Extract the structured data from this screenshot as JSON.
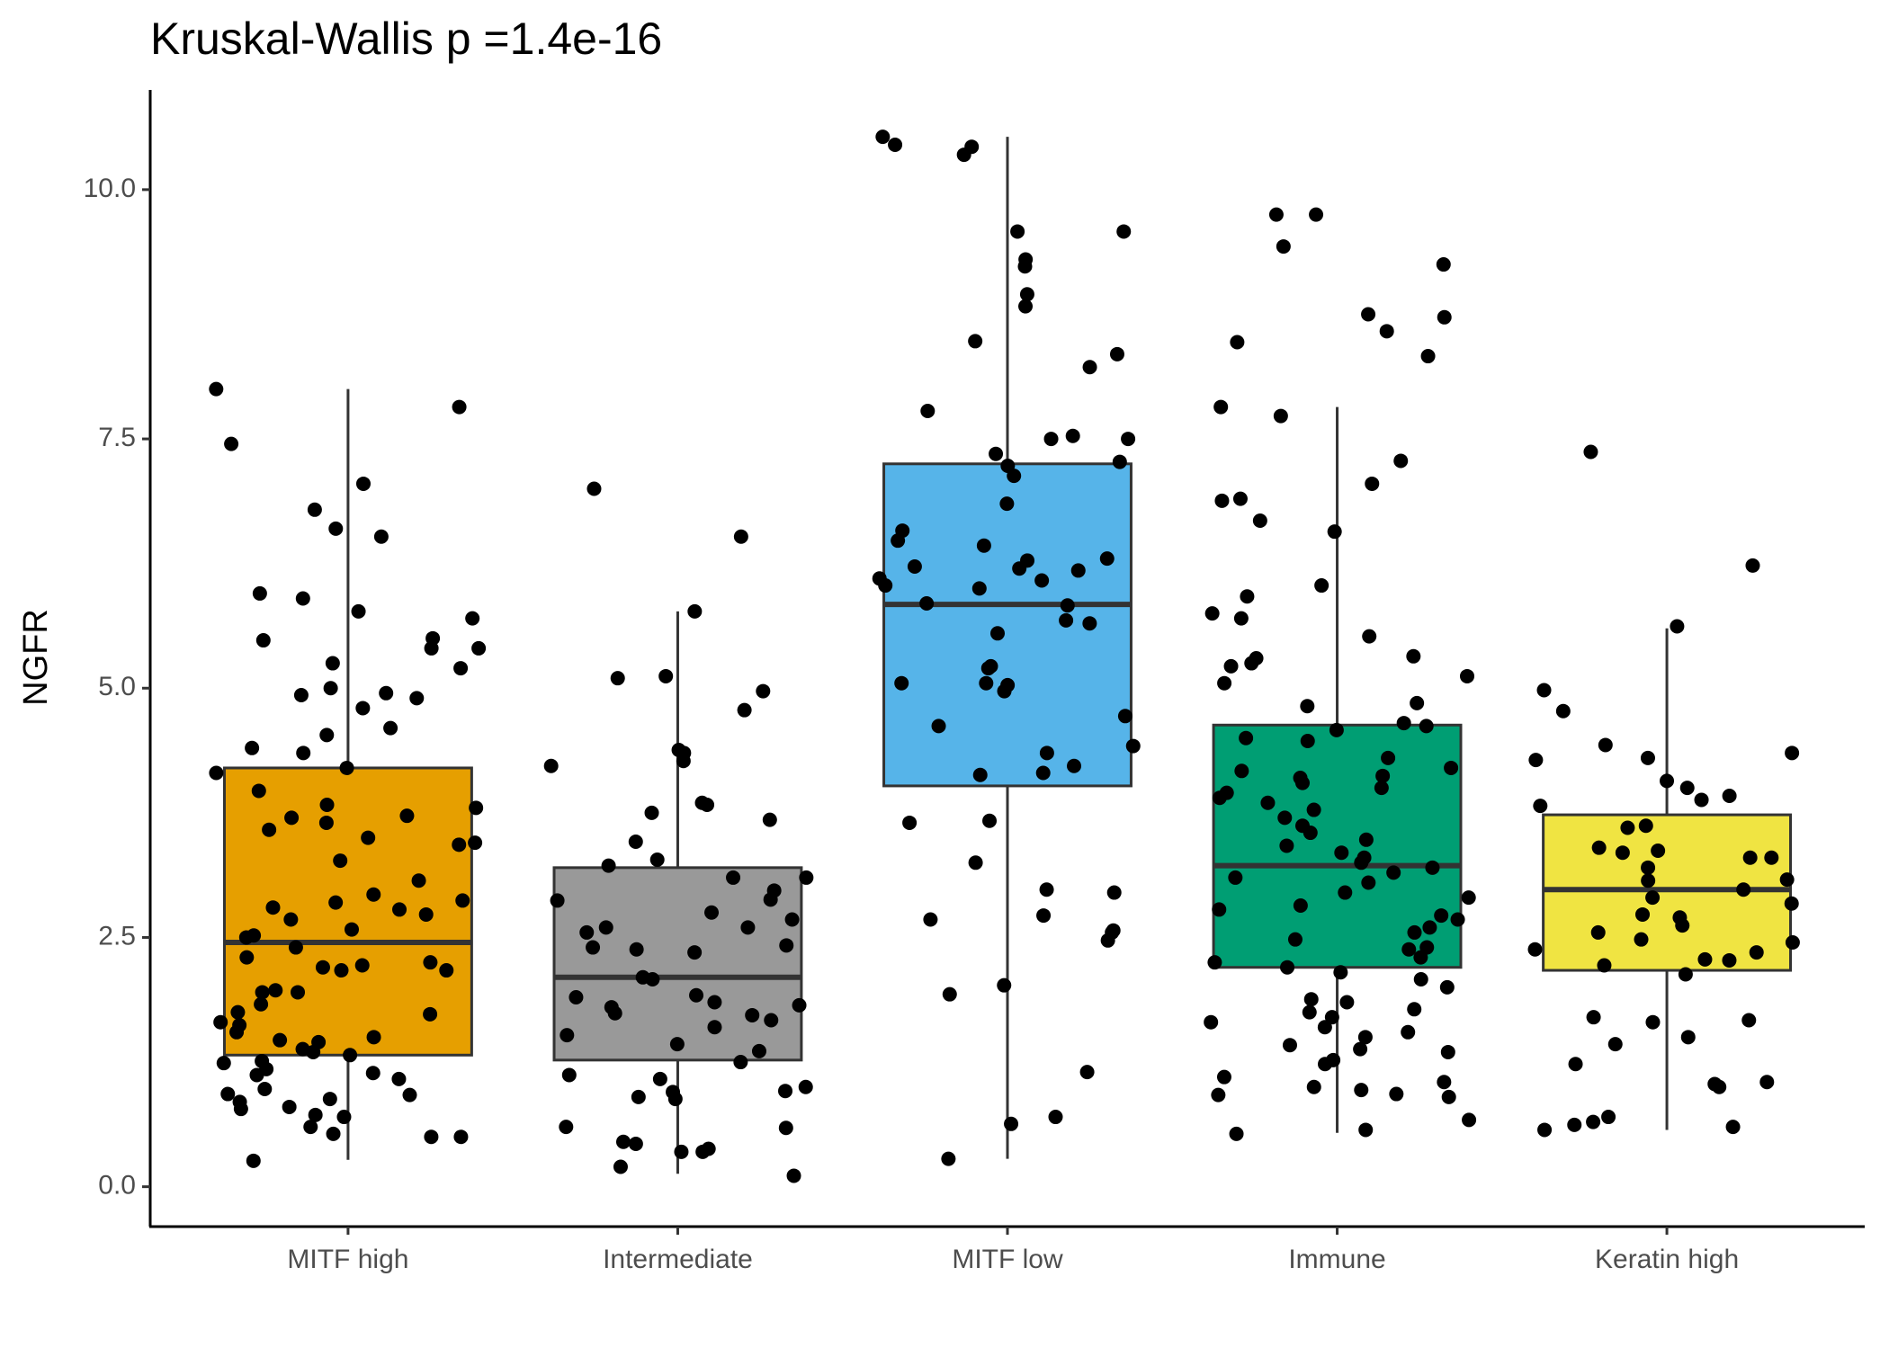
{
  "chart_data": {
    "type": "box",
    "title": "Kruskal-Wallis p =1.4e-16",
    "y_label": "NGFR",
    "categories": [
      "MITF high",
      "Intermediate",
      "MITF low",
      "Immune",
      "Keratin high"
    ],
    "ylim": [
      -0.4,
      11.0
    ],
    "yticks": [
      {
        "value": 0,
        "label": "0.0"
      },
      {
        "value": 2.5,
        "label": "2.5"
      },
      {
        "value": 5,
        "label": "5.0"
      },
      {
        "value": 7.5,
        "label": "7.5"
      },
      {
        "value": 10,
        "label": "10.0"
      }
    ],
    "boxes": [
      {
        "color": "#E69F00",
        "whisker_low": 0.27,
        "q1": 1.32,
        "median": 2.45,
        "q3": 4.2,
        "whisker_high": 8.0
      },
      {
        "color": "#999999",
        "whisker_low": 0.13,
        "q1": 1.27,
        "median": 2.1,
        "q3": 3.2,
        "whisker_high": 5.77
      },
      {
        "color": "#56B4E9",
        "whisker_low": 0.28,
        "q1": 4.02,
        "median": 5.84,
        "q3": 7.25,
        "whisker_high": 10.53
      },
      {
        "color": "#009E73",
        "whisker_low": 0.54,
        "q1": 2.2,
        "median": 3.22,
        "q3": 4.63,
        "whisker_high": 7.82
      },
      {
        "color": "#F0E442",
        "whisker_low": 0.57,
        "q1": 2.17,
        "median": 2.98,
        "q3": 3.73,
        "whisker_high": 5.6
      }
    ],
    "points": [
      [
        8.0,
        7.82,
        7.45,
        7.05,
        6.79,
        6.6,
        6.52,
        5.95,
        5.9,
        5.77,
        5.7,
        5.5,
        5.48,
        5.4,
        5.4,
        5.25,
        5.2,
        5.0,
        4.95,
        4.93,
        4.9,
        4.8,
        4.6,
        4.53,
        4.4,
        4.35,
        4.2,
        4.15,
        3.97,
        3.83,
        3.8,
        3.72,
        3.7,
        3.65,
        3.58,
        3.5,
        3.45,
        3.43,
        3.27,
        3.07,
        2.93,
        2.87,
        2.85,
        2.8,
        2.78,
        2.73,
        2.68,
        2.58,
        2.52,
        2.5,
        2.4,
        2.3,
        2.25,
        2.22,
        2.2,
        2.17,
        2.17,
        1.97,
        1.95,
        1.95,
        1.83,
        1.75,
        1.73,
        1.65,
        1.62,
        1.55,
        1.5,
        1.47,
        1.45,
        1.38,
        1.35,
        1.32,
        1.26,
        1.24,
        1.18,
        1.14,
        1.12,
        1.08,
        0.98,
        0.93,
        0.92,
        0.88,
        0.85,
        0.8,
        0.78,
        0.72,
        0.7,
        0.6,
        0.53,
        0.5,
        0.5,
        0.26
      ],
      [
        7.0,
        6.52,
        5.77,
        5.12,
        5.1,
        4.97,
        4.78,
        4.38,
        4.35,
        4.27,
        4.22,
        3.85,
        3.83,
        3.75,
        3.68,
        3.46,
        3.28,
        3.22,
        3.1,
        3.1,
        2.97,
        2.88,
        2.87,
        2.75,
        2.68,
        2.6,
        2.6,
        2.55,
        2.42,
        2.4,
        2.38,
        2.35,
        2.1,
        2.08,
        1.92,
        1.9,
        1.85,
        1.82,
        1.8,
        1.74,
        1.72,
        1.67,
        1.6,
        1.52,
        1.43,
        1.36,
        1.25,
        1.12,
        1.08,
        1.0,
        0.96,
        0.95,
        0.9,
        0.88,
        0.6,
        0.59,
        0.45,
        0.43,
        0.38,
        0.35,
        0.35,
        0.2,
        0.11
      ],
      [
        10.53,
        10.45,
        10.43,
        10.35,
        9.58,
        9.58,
        9.3,
        9.23,
        8.95,
        8.83,
        8.48,
        8.35,
        8.22,
        7.78,
        7.53,
        7.5,
        7.5,
        7.35,
        7.27,
        7.23,
        7.13,
        6.85,
        6.58,
        6.48,
        6.43,
        6.3,
        6.28,
        6.22,
        6.2,
        6.18,
        6.1,
        6.08,
        6.03,
        6.0,
        5.85,
        5.83,
        5.68,
        5.65,
        5.55,
        5.22,
        5.2,
        5.05,
        5.05,
        5.03,
        4.97,
        4.72,
        4.62,
        4.42,
        4.35,
        4.22,
        4.15,
        4.13,
        3.67,
        3.65,
        3.25,
        2.98,
        2.95,
        2.72,
        2.68,
        2.57,
        2.55,
        2.47,
        2.02,
        1.93,
        1.15,
        0.7,
        0.63,
        0.28
      ],
      [
        9.75,
        9.75,
        9.43,
        9.25,
        8.75,
        8.72,
        8.58,
        8.47,
        8.33,
        7.82,
        7.73,
        7.28,
        7.05,
        6.9,
        6.88,
        6.68,
        6.57,
        6.03,
        5.92,
        5.75,
        5.7,
        5.52,
        5.32,
        5.3,
        5.25,
        5.22,
        5.12,
        5.05,
        4.85,
        4.82,
        4.65,
        4.62,
        4.58,
        4.5,
        4.47,
        4.3,
        4.2,
        4.17,
        4.12,
        4.1,
        4.05,
        4.0,
        3.95,
        3.9,
        3.85,
        3.78,
        3.7,
        3.62,
        3.55,
        3.48,
        3.42,
        3.35,
        3.3,
        3.25,
        3.2,
        3.15,
        3.1,
        3.05,
        2.95,
        2.9,
        2.82,
        2.78,
        2.72,
        2.68,
        2.6,
        2.55,
        2.48,
        2.4,
        2.38,
        2.3,
        2.25,
        2.2,
        2.15,
        2.08,
        2.0,
        1.88,
        1.85,
        1.78,
        1.75,
        1.7,
        1.65,
        1.6,
        1.55,
        1.5,
        1.42,
        1.38,
        1.35,
        1.27,
        1.23,
        1.1,
        1.05,
        1.0,
        0.97,
        0.93,
        0.92,
        0.9,
        0.67,
        0.57,
        0.53
      ],
      [
        7.37,
        6.23,
        5.62,
        4.98,
        4.77,
        4.43,
        4.35,
        4.3,
        4.28,
        4.07,
        4.0,
        3.92,
        3.88,
        3.82,
        3.62,
        3.6,
        3.4,
        3.37,
        3.35,
        3.3,
        3.3,
        3.2,
        3.08,
        3.07,
        2.98,
        2.9,
        2.84,
        2.73,
        2.7,
        2.62,
        2.55,
        2.48,
        2.45,
        2.38,
        2.35,
        2.28,
        2.27,
        2.22,
        2.13,
        1.7,
        1.67,
        1.65,
        1.5,
        1.43,
        1.23,
        1.05,
        1.03,
        1.0,
        0.7,
        0.65,
        0.62,
        0.6,
        0.57
      ]
    ]
  }
}
